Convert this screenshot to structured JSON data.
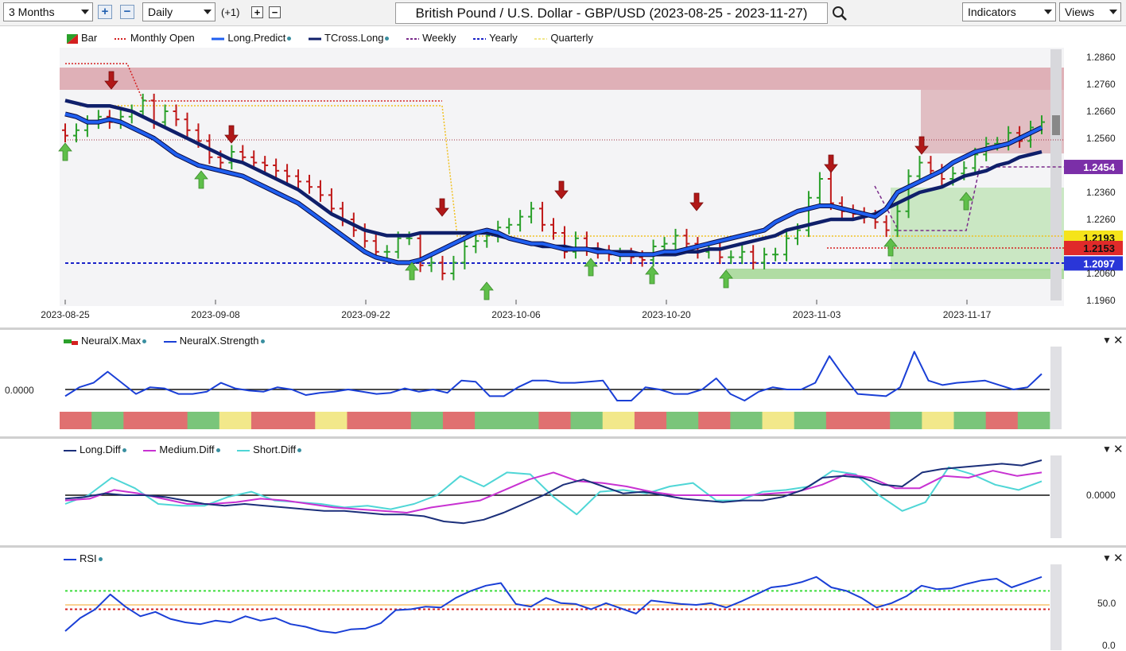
{
  "toolbar": {
    "range": "3 Months",
    "interval": "Daily",
    "plus_minus_label": "(+1)",
    "title": "British Pound / U.S. Dollar - GBP/USD (2023-08-25 - 2023-11-27)",
    "indicators_label": "Indicators",
    "views_label": "Views"
  },
  "legend_main": [
    {
      "label": "Bar",
      "color": "#c0392b",
      "style": "bar"
    },
    {
      "label": "Monthly Open",
      "color": "#d42020",
      "style": "dot"
    },
    {
      "label": "Long.Predict",
      "color": "#1f5ff0",
      "style": "solid"
    },
    {
      "label": "TCross.Long",
      "color": "#0f1f6a",
      "style": "solid"
    },
    {
      "label": "Weekly",
      "color": "#7a2a8a",
      "style": "dash"
    },
    {
      "label": "Yearly",
      "color": "#1a22c8",
      "style": "dash"
    },
    {
      "label": "Quarterly",
      "color": "#f1e78a",
      "style": "dash"
    }
  ],
  "main_yaxis": [
    "1.2860",
    "1.2760",
    "1.2660",
    "1.2560",
    "1.2360",
    "1.2260",
    "1.2060",
    "1.1960"
  ],
  "price_badges": [
    {
      "text": "1.2454",
      "color": "#7b2fa8",
      "text_color": "#ffffff",
      "value": 1.2454
    },
    {
      "text": "1.2193",
      "color": "#f5e41a",
      "text_color": "#111111",
      "value": 1.2193
    },
    {
      "text": "1.2153",
      "color": "#e02a2a",
      "text_color": "#111111",
      "value": 1.2153
    },
    {
      "text": "1.2097",
      "color": "#2a36d8",
      "text_color": "#ffffff",
      "value": 1.2097
    }
  ],
  "x_labels": [
    "2023-08-25",
    "2023-09-08",
    "2023-09-22",
    "2023-10-06",
    "2023-10-20",
    "2023-11-03",
    "2023-11-17"
  ],
  "legend_neural": [
    {
      "label": "NeuralX.Max",
      "color": "#2aa02a"
    },
    {
      "label": "NeuralX.Strength",
      "color": "#1a3fd6"
    }
  ],
  "neural_zero": "0.0000",
  "legend_diff": [
    {
      "label": "Long.Diff",
      "color": "#1b2f7a"
    },
    {
      "label": "Medium.Diff",
      "color": "#c832d2"
    },
    {
      "label": "Short.Diff",
      "color": "#4fd6d6"
    }
  ],
  "diff_zero": "0.0000",
  "legend_rsi": [
    {
      "label": "RSI",
      "color": "#1a3fd6"
    }
  ],
  "rsi_labels": [
    "50.0",
    "0.0"
  ],
  "chart_data": {
    "type": "line",
    "title": "British Pound / U.S. Dollar - GBP/USD (2023-08-25 - 2023-11-27)",
    "ylim": [
      1.196,
      1.29
    ],
    "close": [
      1.257,
      1.259,
      1.262,
      1.264,
      1.262,
      1.264,
      1.266,
      1.27,
      1.262,
      1.266,
      1.263,
      1.259,
      1.255,
      1.249,
      1.247,
      1.251,
      1.249,
      1.247,
      1.246,
      1.244,
      1.242,
      1.24,
      1.238,
      1.235,
      1.23,
      1.226,
      1.222,
      1.218,
      1.214,
      1.214,
      1.219,
      1.219,
      1.209,
      1.21,
      1.206,
      1.21,
      1.216,
      1.218,
      1.22,
      1.223,
      1.224,
      1.227,
      1.23,
      1.224,
      1.221,
      1.214,
      1.219,
      1.215,
      1.214,
      1.213,
      1.213,
      1.212,
      1.211,
      1.216,
      1.217,
      1.22,
      1.217,
      1.214,
      1.215,
      1.212,
      1.212,
      1.214,
      1.21,
      1.213,
      1.213,
      1.219,
      1.222,
      1.234,
      1.241,
      1.232,
      1.229,
      1.228,
      1.227,
      1.225,
      1.222,
      1.229,
      1.242,
      1.247,
      1.244,
      1.241,
      1.243,
      1.245,
      1.25,
      1.254,
      1.254,
      1.258,
      1.255,
      1.26,
      1.262
    ],
    "long_predict": [
      1.265,
      1.264,
      1.262,
      1.262,
      1.263,
      1.262,
      1.26,
      1.258,
      1.256,
      1.253,
      1.25,
      1.248,
      1.246,
      1.245,
      1.244,
      1.243,
      1.242,
      1.24,
      1.238,
      1.236,
      1.234,
      1.232,
      1.229,
      1.226,
      1.223,
      1.22,
      1.217,
      1.214,
      1.212,
      1.211,
      1.21,
      1.21,
      1.211,
      1.213,
      1.215,
      1.217,
      1.219,
      1.221,
      1.222,
      1.221,
      1.219,
      1.218,
      1.217,
      1.217,
      1.216,
      1.215,
      1.215,
      1.215,
      1.214,
      1.214,
      1.213,
      1.213,
      1.213,
      1.213,
      1.214,
      1.214,
      1.215,
      1.216,
      1.217,
      1.218,
      1.219,
      1.22,
      1.221,
      1.222,
      1.225,
      1.227,
      1.229,
      1.23,
      1.231,
      1.231,
      1.23,
      1.229,
      1.228,
      1.227,
      1.23,
      1.236,
      1.238,
      1.24,
      1.242,
      1.244,
      1.247,
      1.249,
      1.251,
      1.252,
      1.253,
      1.254,
      1.256,
      1.258,
      1.26
    ],
    "tcross_long": [
      1.27,
      1.269,
      1.268,
      1.268,
      1.268,
      1.267,
      1.266,
      1.264,
      1.262,
      1.26,
      1.258,
      1.256,
      1.254,
      1.252,
      1.25,
      1.248,
      1.247,
      1.245,
      1.243,
      1.241,
      1.239,
      1.237,
      1.234,
      1.231,
      1.228,
      1.226,
      1.224,
      1.222,
      1.221,
      1.22,
      1.22,
      1.22,
      1.221,
      1.221,
      1.221,
      1.221,
      1.221,
      1.221,
      1.221,
      1.22,
      1.219,
      1.218,
      1.217,
      1.216,
      1.216,
      1.216,
      1.215,
      1.215,
      1.215,
      1.214,
      1.214,
      1.214,
      1.213,
      1.213,
      1.213,
      1.213,
      1.214,
      1.214,
      1.215,
      1.215,
      1.216,
      1.217,
      1.218,
      1.219,
      1.22,
      1.222,
      1.223,
      1.224,
      1.225,
      1.226,
      1.226,
      1.226,
      1.227,
      1.228,
      1.23,
      1.232,
      1.234,
      1.236,
      1.237,
      1.238,
      1.24,
      1.242,
      1.243,
      1.244,
      1.246,
      1.247,
      1.249,
      1.25,
      1.251
    ],
    "neural_strength": [
      -0.3,
      0.1,
      0.3,
      0.8,
      0.3,
      -0.2,
      0.1,
      0.05,
      -0.2,
      -0.2,
      -0.1,
      0.3,
      0.05,
      -0.05,
      -0.1,
      0.1,
      0.0,
      -0.25,
      -0.15,
      -0.1,
      0.0,
      -0.1,
      -0.2,
      -0.15,
      0.05,
      -0.1,
      0.0,
      -0.15,
      0.4,
      0.35,
      -0.3,
      -0.3,
      0.1,
      0.4,
      0.4,
      0.3,
      0.3,
      0.35,
      0.4,
      -0.5,
      -0.5,
      0.1,
      0.0,
      -0.2,
      -0.2,
      0.0,
      0.5,
      -0.2,
      -0.5,
      -0.1,
      0.1,
      0.0,
      0.0,
      0.3,
      1.5,
      0.6,
      -0.2,
      -0.25,
      -0.3,
      0.1,
      1.7,
      0.4,
      0.2,
      0.3,
      0.35,
      0.4,
      0.2,
      0.0,
      0.1,
      0.7
    ],
    "neural_max_states": [
      "red",
      "green",
      "red",
      "red",
      "green",
      "yellow",
      "red",
      "red",
      "yellow",
      "red",
      "red",
      "green",
      "red",
      "green",
      "green",
      "red",
      "green",
      "yellow",
      "red",
      "green",
      "red",
      "green",
      "yellow",
      "green",
      "red",
      "red",
      "green",
      "yellow",
      "green",
      "red",
      "green"
    ],
    "long_diff": [
      -0.2,
      -0.1,
      0.1,
      0.0,
      0.0,
      -0.1,
      -0.3,
      -0.5,
      -0.6,
      -0.5,
      -0.6,
      -0.7,
      -0.8,
      -0.9,
      -0.9,
      -1.0,
      -1.1,
      -1.1,
      -1.2,
      -1.5,
      -1.6,
      -1.4,
      -1.0,
      -0.5,
      0.0,
      0.6,
      0.9,
      0.5,
      0.1,
      0.2,
      0.0,
      -0.2,
      -0.3,
      -0.4,
      -0.3,
      -0.3,
      -0.1,
      0.3,
      1.0,
      1.1,
      1.0,
      0.6,
      0.5,
      1.3,
      1.5,
      1.6,
      1.7,
      1.8,
      1.7,
      2.0
    ],
    "medium_diff": [
      -0.3,
      -0.2,
      0.3,
      0.1,
      -0.2,
      -0.5,
      -0.5,
      -0.4,
      -0.2,
      -0.3,
      -0.5,
      -0.7,
      -0.8,
      -0.9,
      -1.0,
      -0.7,
      -0.5,
      -0.3,
      0.3,
      0.9,
      1.3,
      0.8,
      0.7,
      0.5,
      0.2,
      0.0,
      0.0,
      0.0,
      0.0,
      0.1,
      0.2,
      0.6,
      1.2,
      1.0,
      0.4,
      0.4,
      1.1,
      1.0,
      1.4,
      1.1,
      1.3
    ],
    "short_diff": [
      -0.5,
      0.0,
      1.0,
      0.4,
      -0.5,
      -0.6,
      -0.6,
      -0.1,
      0.2,
      -0.3,
      -0.4,
      -0.5,
      -0.7,
      -0.6,
      -0.8,
      -0.5,
      0.0,
      1.1,
      0.5,
      1.3,
      1.2,
      -0.1,
      -1.1,
      0.2,
      0.3,
      0.1,
      0.5,
      0.7,
      -0.3,
      -0.3,
      0.2,
      0.3,
      0.5,
      1.4,
      1.2,
      0.0,
      -0.9,
      -0.4,
      1.6,
      1.2,
      0.6,
      0.3,
      0.8
    ]
  }
}
